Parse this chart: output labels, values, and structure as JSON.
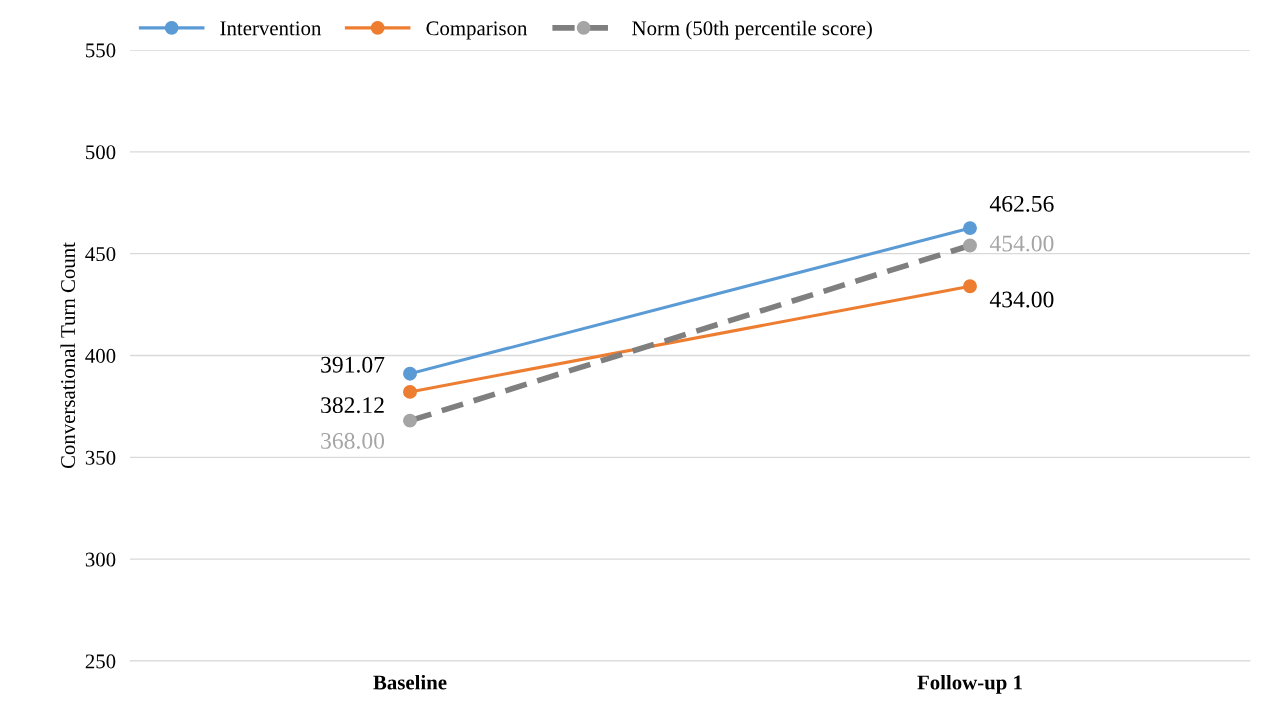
{
  "chart_data": {
    "type": "line",
    "ylabel": "Conversational Turn Count",
    "categories": [
      "Baseline",
      "Follow-up 1"
    ],
    "series": [
      {
        "name": "Intervention",
        "color": "#5b9bd5",
        "values": [
          391.07,
          462.56
        ],
        "value_labels": [
          "391.07",
          "462.56"
        ],
        "line_style": "solid"
      },
      {
        "name": "Comparison",
        "color": "#ed7d31",
        "values": [
          382.12,
          434.0
        ],
        "value_labels": [
          "382.12",
          "434.00"
        ],
        "line_style": "solid"
      },
      {
        "name": "Norm (50th percentile score)",
        "color": "#a5a5a5",
        "values": [
          368.0,
          454.0
        ],
        "value_labels": [
          "368.00",
          "454.00"
        ],
        "line_style": "dashed"
      }
    ],
    "ylim": [
      250,
      550
    ],
    "yticks": [
      250,
      300,
      350,
      400,
      450,
      500,
      550
    ],
    "grid": "y",
    "legend": "top left",
    "marker": "circle"
  }
}
